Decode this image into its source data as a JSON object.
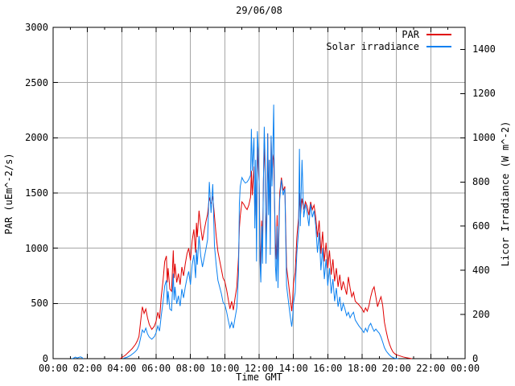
{
  "chart_data": {
    "type": "line",
    "title": "29/06/08",
    "xlabel": "Time GMT",
    "ylabel_left": "PAR (uEm^-2/s)",
    "ylabel_right": "Licor Irradiance (W m^-2)",
    "x_unit": "hours GMT",
    "x_range_hours": [
      0,
      24
    ],
    "x_major_tick_step_hours": 2,
    "x_minor_tick_step_hours": 1,
    "x_tick_labels": [
      "00:00",
      "02:00",
      "04:00",
      "06:00",
      "08:00",
      "10:00",
      "12:00",
      "14:00",
      "16:00",
      "18:00",
      "20:00",
      "22:00",
      "00:00"
    ],
    "y_left_axis": {
      "range": [
        0,
        3000
      ],
      "tick_step": 500,
      "ticks": [
        0,
        500,
        1000,
        1500,
        2000,
        2500,
        3000
      ],
      "tick_labels": [
        "0",
        "500",
        "1000",
        "1500",
        "2000",
        "2500",
        "3000"
      ]
    },
    "y_right_axis": {
      "range": [
        0,
        1500
      ],
      "tick_step": 200,
      "ticks": [
        0,
        200,
        400,
        600,
        800,
        1000,
        1200,
        1400
      ],
      "tick_labels": [
        "0",
        "200",
        "400",
        "600",
        "800",
        "1000",
        "1200",
        "1400"
      ]
    },
    "grid": true,
    "grid_color": "#a6a6a6",
    "border_color": "#000000",
    "background_color": "#ffffff",
    "legend": {
      "position": "top-right",
      "entries": [
        {
          "label": "PAR",
          "color": "#e00000"
        },
        {
          "label": "Solar irradiance",
          "color": "#0a80f0"
        }
      ]
    },
    "series": [
      {
        "name": "PAR",
        "axis": "left",
        "color": "#e00000",
        "x": [
          3.9,
          4.0,
          4.1,
          4.2,
          4.3,
          4.4,
          4.5,
          4.6,
          4.7,
          4.8,
          4.9,
          5.0,
          5.1,
          5.2,
          5.3,
          5.4,
          5.5,
          5.6,
          5.75,
          5.9,
          6.0,
          6.1,
          6.2,
          6.3,
          6.4,
          6.5,
          6.6,
          6.65,
          6.7,
          6.8,
          6.9,
          7.0,
          7.05,
          7.1,
          7.2,
          7.3,
          7.4,
          7.5,
          7.6,
          7.7,
          7.8,
          7.9,
          8.0,
          8.1,
          8.2,
          8.3,
          8.35,
          8.4,
          8.5,
          8.6,
          8.7,
          8.8,
          8.9,
          9.0,
          9.1,
          9.2,
          9.3,
          9.4,
          9.5,
          9.6,
          9.7,
          9.8,
          9.9,
          10.0,
          10.1,
          10.2,
          10.3,
          10.4,
          10.5,
          10.6,
          10.7,
          10.8,
          10.85,
          10.9,
          11.0,
          11.1,
          11.2,
          11.3,
          11.4,
          11.5,
          11.55,
          11.6,
          11.7,
          11.75,
          11.8,
          11.85,
          11.9,
          11.95,
          12.0,
          12.05,
          12.1,
          12.15,
          12.2,
          12.25,
          12.3,
          12.35,
          12.4,
          12.45,
          12.5,
          12.55,
          12.6,
          12.65,
          12.7,
          12.75,
          12.8,
          12.85,
          12.9,
          12.95,
          13.0,
          13.05,
          13.1,
          13.15,
          13.2,
          13.3,
          13.4,
          13.5,
          13.6,
          13.7,
          13.8,
          13.9,
          13.95,
          14.0,
          14.1,
          14.2,
          14.3,
          14.35,
          14.4,
          14.5,
          14.6,
          14.7,
          14.8,
          14.9,
          15.0,
          15.1,
          15.2,
          15.3,
          15.4,
          15.5,
          15.6,
          15.7,
          15.8,
          15.9,
          16.0,
          16.1,
          16.2,
          16.3,
          16.4,
          16.5,
          16.6,
          16.7,
          16.8,
          16.9,
          17.0,
          17.1,
          17.2,
          17.3,
          17.4,
          17.5,
          17.6,
          17.8,
          18.0,
          18.1,
          18.2,
          18.3,
          18.4,
          18.5,
          18.6,
          18.7,
          18.8,
          18.9,
          19.0,
          19.1,
          19.2,
          19.3,
          19.4,
          19.5,
          19.6,
          19.7,
          19.8,
          19.9,
          20.0,
          20.2,
          20.4,
          20.6,
          20.8,
          20.9
        ],
        "values": [
          0,
          10,
          20,
          30,
          45,
          60,
          75,
          90,
          110,
          130,
          160,
          200,
          340,
          470,
          410,
          450,
          370,
          310,
          265,
          295,
          340,
          420,
          360,
          560,
          700,
          880,
          930,
          690,
          820,
          630,
          610,
          980,
          730,
          860,
          690,
          770,
          670,
          830,
          750,
          860,
          950,
          1000,
          890,
          1070,
          1170,
          960,
          1230,
          1100,
          1340,
          1190,
          1070,
          1160,
          1240,
          1310,
          1460,
          1400,
          1470,
          1290,
          1110,
          970,
          890,
          810,
          730,
          700,
          630,
          540,
          450,
          520,
          440,
          550,
          650,
          920,
          1180,
          1290,
          1420,
          1400,
          1370,
          1350,
          1390,
          1460,
          1700,
          1480,
          1740,
          1300,
          1620,
          1100,
          1920,
          1750,
          1600,
          1050,
          820,
          1250,
          1000,
          1600,
          1950,
          1700,
          1050,
          1350,
          2040,
          1450,
          1800,
          1150,
          2000,
          1600,
          1850,
          1800,
          1400,
          1050,
          900,
          1300,
          800,
          1200,
          1500,
          1640,
          1520,
          1560,
          830,
          700,
          560,
          430,
          520,
          680,
          780,
          1100,
          1280,
          1500,
          1280,
          1450,
          1350,
          1420,
          1380,
          1300,
          1420,
          1350,
          1390,
          1280,
          1100,
          1250,
          950,
          1150,
          880,
          1050,
          820,
          980,
          760,
          900,
          700,
          820,
          650,
          760,
          620,
          700,
          640,
          580,
          740,
          640,
          560,
          600,
          520,
          490,
          450,
          420,
          460,
          430,
          480,
          560,
          620,
          650,
          560,
          470,
          520,
          560,
          480,
          330,
          250,
          180,
          130,
          90,
          60,
          45,
          35,
          25,
          15,
          8,
          3,
          0
        ]
      },
      {
        "name": "Solar irradiance",
        "axis": "right",
        "color": "#0a80f0",
        "x": [
          1.1,
          1.2,
          1.3,
          1.4,
          1.5,
          1.6,
          1.7,
          1.75,
          2.0,
          4.1,
          4.2,
          4.3,
          4.4,
          4.5,
          4.6,
          4.7,
          4.8,
          4.9,
          5.0,
          5.1,
          5.2,
          5.3,
          5.4,
          5.5,
          5.6,
          5.75,
          5.9,
          6.0,
          6.1,
          6.2,
          6.3,
          6.4,
          6.5,
          6.6,
          6.65,
          6.7,
          6.8,
          6.9,
          7.0,
          7.05,
          7.1,
          7.2,
          7.3,
          7.4,
          7.5,
          7.6,
          7.7,
          7.8,
          7.9,
          8.0,
          8.1,
          8.2,
          8.3,
          8.35,
          8.4,
          8.5,
          8.6,
          8.7,
          8.8,
          8.9,
          9.0,
          9.1,
          9.2,
          9.3,
          9.4,
          9.5,
          9.6,
          9.7,
          9.8,
          9.9,
          10.0,
          10.1,
          10.2,
          10.3,
          10.4,
          10.5,
          10.6,
          10.7,
          10.8,
          10.85,
          10.9,
          11.0,
          11.1,
          11.2,
          11.3,
          11.4,
          11.5,
          11.55,
          11.6,
          11.7,
          11.75,
          11.8,
          11.85,
          11.9,
          11.95,
          12.0,
          12.05,
          12.1,
          12.15,
          12.2,
          12.25,
          12.3,
          12.35,
          12.4,
          12.45,
          12.5,
          12.55,
          12.6,
          12.65,
          12.7,
          12.75,
          12.8,
          12.85,
          12.9,
          12.95,
          13.0,
          13.05,
          13.1,
          13.15,
          13.2,
          13.3,
          13.4,
          13.5,
          13.6,
          13.7,
          13.8,
          13.9,
          13.95,
          14.0,
          14.1,
          14.2,
          14.3,
          14.35,
          14.4,
          14.5,
          14.6,
          14.7,
          14.8,
          14.9,
          15.0,
          15.1,
          15.2,
          15.3,
          15.4,
          15.5,
          15.6,
          15.7,
          15.8,
          15.9,
          16.0,
          16.1,
          16.2,
          16.3,
          16.4,
          16.5,
          16.6,
          16.7,
          16.8,
          16.9,
          17.0,
          17.1,
          17.2,
          17.3,
          17.4,
          17.5,
          17.6,
          17.8,
          18.0,
          18.1,
          18.2,
          18.3,
          18.4,
          18.5,
          18.6,
          18.7,
          18.8,
          18.9,
          19.0,
          19.1,
          19.2,
          19.3,
          19.4,
          19.5,
          19.6,
          19.7,
          19.8,
          19.9,
          20.0,
          20.1
        ],
        "values": [
          0,
          3,
          7,
          3,
          6,
          8,
          4,
          0,
          null,
          2,
          4,
          6,
          10,
          14,
          20,
          26,
          33,
          42,
          60,
          95,
          130,
          118,
          138,
          112,
          98,
          88,
          100,
          118,
          148,
          125,
          195,
          255,
          330,
          355,
          245,
          305,
          225,
          218,
          385,
          265,
          325,
          248,
          285,
          238,
          315,
          275,
          325,
          365,
          395,
          335,
          425,
          470,
          365,
          495,
          425,
          555,
          465,
          415,
          455,
          495,
          540,
          800,
          660,
          790,
          510,
          425,
          355,
          325,
          295,
          255,
          245,
          215,
          175,
          140,
          165,
          138,
          185,
          230,
          380,
          700,
          780,
          820,
          805,
          795,
          800,
          812,
          830,
          1040,
          850,
          1000,
          590,
          900,
          440,
          1030,
          950,
          820,
          440,
          345,
          600,
          430,
          800,
          1050,
          900,
          430,
          620,
          1020,
          650,
          900,
          470,
          1010,
          780,
          950,
          1150,
          700,
          420,
          350,
          600,
          320,
          550,
          720,
          810,
          740,
          770,
          330,
          265,
          200,
          145,
          180,
          250,
          300,
          480,
          580,
          950,
          600,
          900,
          640,
          700,
          660,
          600,
          700,
          640,
          670,
          600,
          480,
          570,
          400,
          500,
          360,
          450,
          330,
          410,
          295,
          360,
          260,
          320,
          235,
          280,
          215,
          250,
          225,
          195,
          210,
          185,
          200,
          210,
          175,
          150,
          130,
          118,
          138,
          122,
          148,
          160,
          140,
          124,
          134,
          124,
          115,
          98,
          75,
          50,
          35,
          25,
          16,
          9,
          5,
          2,
          1,
          0
        ]
      }
    ]
  }
}
